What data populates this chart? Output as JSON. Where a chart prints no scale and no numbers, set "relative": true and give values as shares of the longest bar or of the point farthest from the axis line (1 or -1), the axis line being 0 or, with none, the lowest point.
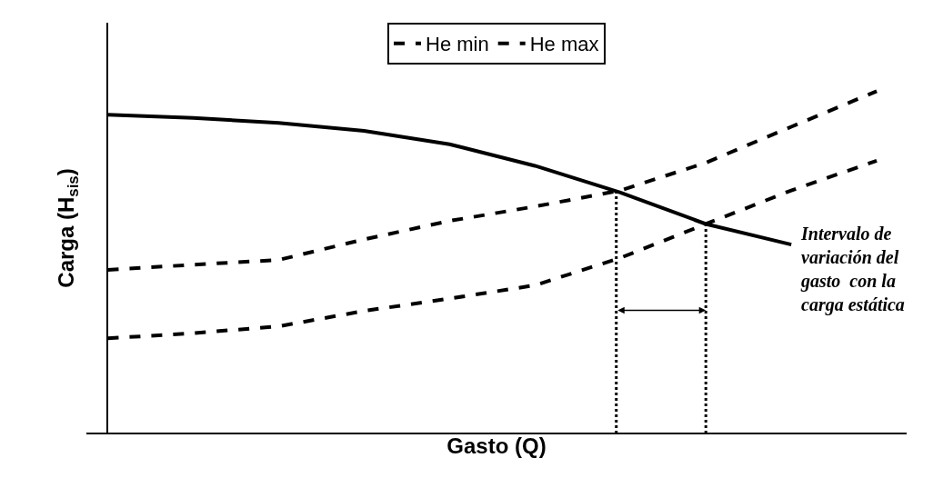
{
  "chart_data": {
    "type": "line",
    "relative": true,
    "xlabel": "Gasto (Q)",
    "ylabel": "Carga (H$_{sis}$)",
    "categories": [
      null,
      null,
      null,
      null,
      null,
      null,
      null,
      null,
      null,
      null
    ],
    "series": [
      {
        "values": [
          0.931,
          0.922,
          0.907,
          0.884,
          0.845,
          0.782,
          0.704,
          0.612,
          0.552,
          null
        ],
        "color": "#000000",
        "line_style": "solid"
      },
      {
        "name": "He min",
        "values": [
          0.278,
          0.293,
          0.313,
          0.358,
          0.394,
          0.433,
          0.513,
          0.612,
          0.71,
          0.797
        ],
        "color": "#000000",
        "line_style": "dashed"
      },
      {
        "name": "He max",
        "values": [
          0.478,
          0.493,
          0.507,
          0.567,
          0.621,
          0.663,
          0.71,
          0.791,
          0.896,
          1.0
        ],
        "color": "#000000",
        "line_style": "dashed"
      }
    ],
    "annotations": [
      "Intervalo de\nvariación del\ngasto  con la\ncarga estática"
    ],
    "legend": "top",
    "marker": "none"
  }
}
